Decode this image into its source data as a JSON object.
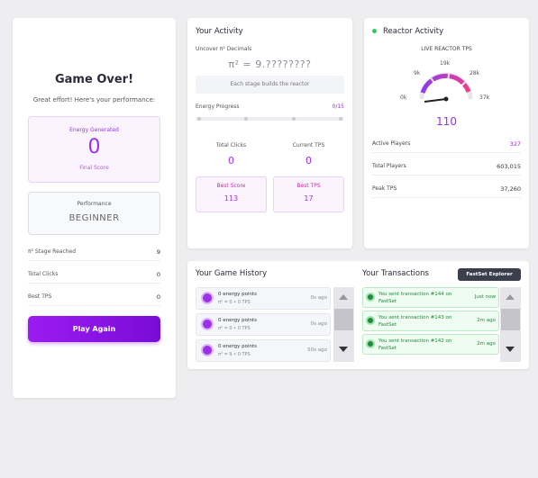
{
  "left": {
    "title": "Game Over!",
    "subtitle": "Great effort! Here's your performance:",
    "energy_label": "Energy Generated",
    "energy_value": 0,
    "energy_caption": "Final Score",
    "performance_label": "Performance",
    "performance_value": "BEGINNER",
    "stats": [
      {
        "label": "π² Stage Reached",
        "value": 9
      },
      {
        "label": "Total Clicks",
        "value": 0
      },
      {
        "label": "Best TPS",
        "value": 0
      }
    ],
    "button": "Play Again"
  },
  "activity": {
    "title": "Your Activity",
    "decimals_label": "Uncover π² Decimals",
    "decimals_value": "π² = 9.????????",
    "hint": "Each stage builds the reactor",
    "progress_label": "Energy Progress",
    "progress_value": "0/15",
    "stats": [
      {
        "label": "Total Clicks",
        "value": 0
      },
      {
        "label": "Current TPS",
        "value": 0
      }
    ],
    "bests": [
      {
        "label": "Best Score",
        "value": 113
      },
      {
        "label": "Best TPS",
        "value": 17
      }
    ]
  },
  "reactor": {
    "title": "Reactor Activity",
    "gauge_title": "LIVE REACTOR TPS",
    "gauge_labels": [
      "0k",
      "9k",
      "19k",
      "28k",
      "37k"
    ],
    "gauge_value": 110,
    "stats": [
      {
        "label": "Active Players",
        "value": 327
      },
      {
        "label": "Total Players",
        "value": "603,015"
      },
      {
        "label": "Peak TPS",
        "value": "37,260"
      }
    ]
  },
  "history": {
    "title": "Your Game History",
    "items": [
      {
        "points": "0 energy points",
        "detail": "π² = 0 • 0 TPS",
        "time": "0s ago"
      },
      {
        "points": "0 energy points",
        "detail": "π² = 0 • 0 TPS",
        "time": "0s ago"
      },
      {
        "points": "0 energy points",
        "detail": "π² = 9 • 0 TPS",
        "time": "50s ago"
      }
    ]
  },
  "transactions": {
    "title": "Your Transactions",
    "explorer": "FastSet Explorer",
    "items": [
      {
        "text": "You sent transaction #144 on FastSet",
        "time": "Just now"
      },
      {
        "text": "You sent transaction #143 on FastSet",
        "time": "2m ago"
      },
      {
        "text": "You sent transaction #142 on FastSet",
        "time": "2m ago"
      }
    ]
  }
}
